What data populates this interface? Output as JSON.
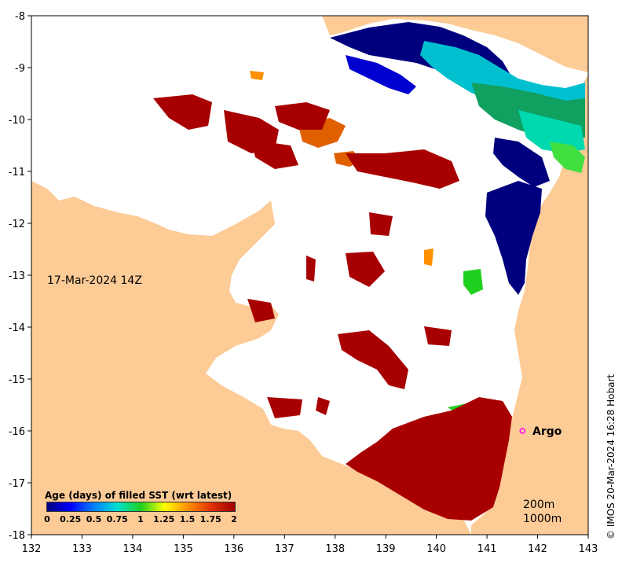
{
  "map": {
    "date_label": "17-Mar-2024 14Z",
    "credit": "© IMOS 20-Mar-2024 16:28 Hobart",
    "argo_label": "Argo",
    "depth_labels": [
      "200m",
      "1000m"
    ],
    "x_ticks": [
      "132",
      "133",
      "134",
      "135",
      "136",
      "137",
      "138",
      "139",
      "140",
      "141",
      "142",
      "143"
    ],
    "y_ticks": [
      "-8",
      "-9",
      "-10",
      "-11",
      "-12",
      "-13",
      "-14",
      "-15",
      "-16",
      "-17",
      "-18"
    ],
    "x_range": [
      132,
      143
    ],
    "y_range": [
      -8,
      -18
    ],
    "argo_position": {
      "lon": 141.7,
      "lat": -16.0
    }
  },
  "legend": {
    "title": "Age (days) of filled SST (wrt latest)",
    "ticks": [
      "0",
      "0.25",
      "0.5",
      "0.75",
      "1",
      "1.25",
      "1.5",
      "1.75",
      "2"
    ],
    "colors": [
      "#00007f",
      "#0000ff",
      "#0080ff",
      "#00e0d0",
      "#20d020",
      "#ffff00",
      "#ff9000",
      "#e03000",
      "#a00000"
    ]
  },
  "colors": {
    "land": "#fdcb96",
    "sea": "#ffffff",
    "old": "#a80000",
    "argo": "#ff00ff"
  }
}
